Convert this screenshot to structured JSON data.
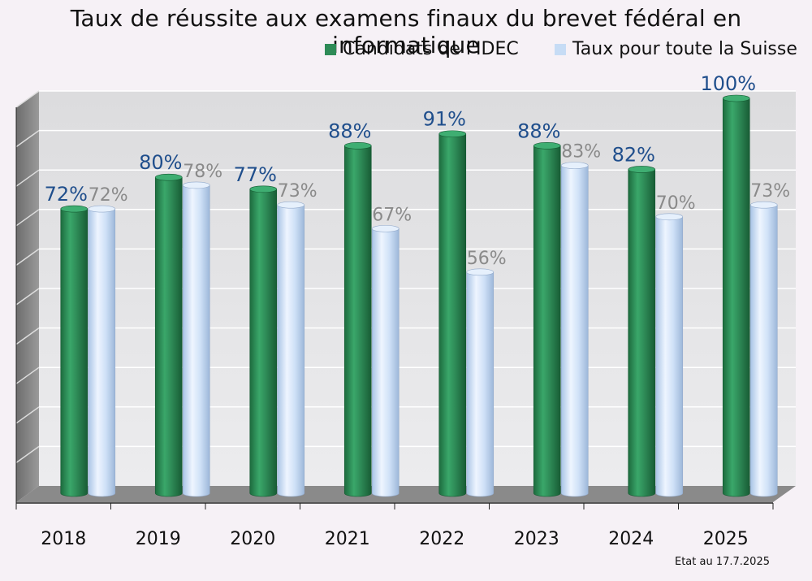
{
  "chart_data": {
    "type": "bar",
    "title": "Taux de réussite aux examens finaux du brevet fédéral en informatique",
    "categories": [
      "2018",
      "2019",
      "2020",
      "2021",
      "2022",
      "2023",
      "2024",
      "2025"
    ],
    "series": [
      {
        "name": "Candidats de l'IDEC",
        "values": [
          72,
          80,
          77,
          88,
          91,
          88,
          82,
          100
        ],
        "labels": [
          "72%",
          "80%",
          "77%",
          "88%",
          "91%",
          "88%",
          "82%",
          "100%"
        ],
        "color": "#2e8b57",
        "label_color": "#1f4e8c"
      },
      {
        "name": "Taux pour toute la Suisse",
        "values": [
          72,
          78,
          73,
          67,
          56,
          83,
          70,
          73
        ],
        "labels": [
          "72%",
          "78%",
          "73%",
          "67%",
          "56%",
          "83%",
          "70%",
          "73%"
        ],
        "color": "#c6dcf5",
        "label_color": "#8a8a8a"
      }
    ],
    "ylim": [
      0,
      100
    ],
    "grid": true,
    "legend_position": "top-right",
    "note": "Etat au 17.7.2025"
  }
}
